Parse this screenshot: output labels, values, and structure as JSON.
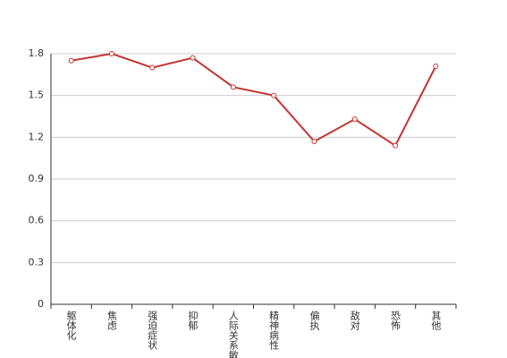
{
  "chart_data": {
    "type": "line",
    "categories": [
      "躯体化",
      "焦虑",
      "强迫症状",
      "抑郁",
      "人际关系敏感",
      "精神病性",
      "偏执",
      "敌对",
      "恐怖",
      "其他"
    ],
    "values": [
      1.75,
      1.8,
      1.7,
      1.77,
      1.56,
      1.5,
      1.17,
      1.33,
      1.14,
      1.71
    ],
    "color": "#c23531",
    "ylim": [
      0,
      1.8
    ],
    "yticks": [
      0,
      0.3,
      0.6,
      0.9,
      1.2,
      1.5,
      1.8
    ],
    "grid": true
  }
}
